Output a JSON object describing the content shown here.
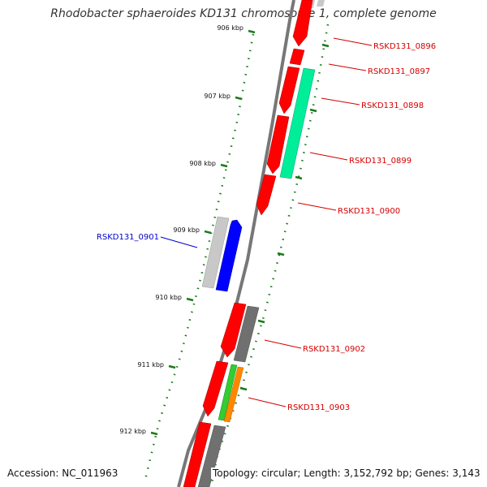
{
  "title": "Rhodobacter sphaeroides KD131 chromosome 1, complete genome",
  "accession": "Accession: NC_011963",
  "topology": "Topology: circular; Length: 3,152,792 bp; Genes: 3,143",
  "colors": {
    "backbone": "#777777",
    "ruler": "#1a7a1a",
    "label_red": "#d40000",
    "label_blue": "#0000cc",
    "gene_red": "#ff0000",
    "gene_green": "#00ee99",
    "gene_blue": "#0000ff",
    "gene_lightgray": "#c8c8c8",
    "gene_gray": "#707070",
    "gene_lime": "#33cc33",
    "gene_orange": "#ff8800"
  },
  "ruler_ticks": [
    "906 kbp",
    "907 kbp",
    "908 kbp",
    "909 kbp",
    "910 kbp",
    "911 kbp",
    "912 kbp"
  ],
  "gene_labels": [
    "RSKD131_0896",
    "RSKD131_0897",
    "RSKD131_0898",
    "RSKD131_0899",
    "RSKD131_0900",
    "RSKD131_0901",
    "RSKD131_0902",
    "RSKD131_0903"
  ]
}
